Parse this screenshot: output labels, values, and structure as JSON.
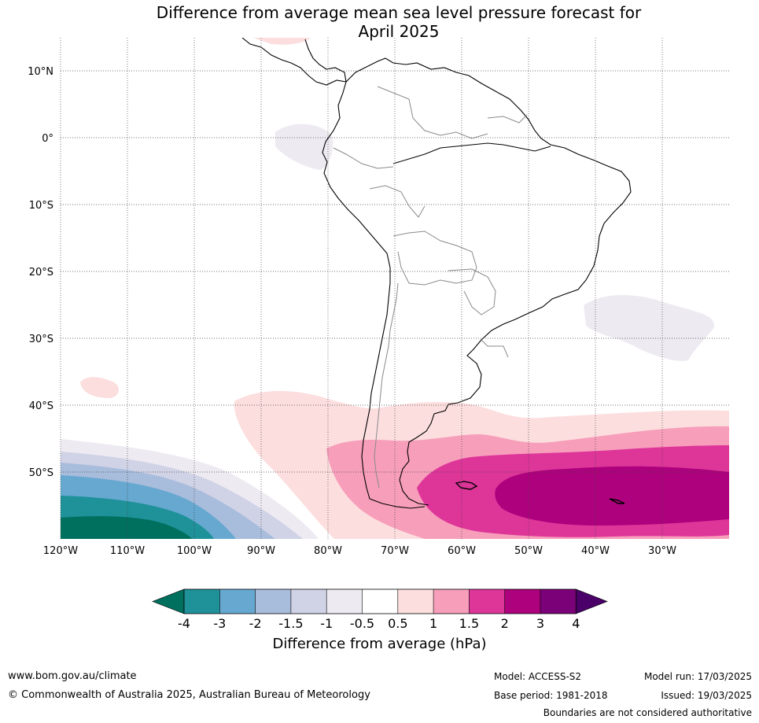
{
  "title_line1": "Difference from average mean sea level pressure forecast for",
  "title_line2": "April 2025",
  "lat_labels": [
    "10°N",
    "0°",
    "10°S",
    "20°S",
    "30°S",
    "40°S",
    "50°S"
  ],
  "lon_labels": [
    "120°W",
    "110°W",
    "100°W",
    "90°W",
    "80°W",
    "70°W",
    "60°W",
    "50°W",
    "40°W",
    "30°W"
  ],
  "colorbar": {
    "title": "Difference from average (hPa)",
    "tick_labels": [
      "-4",
      "-3",
      "-2",
      "-1.5",
      "-1",
      "-0.5",
      "0.5",
      "1",
      "1.5",
      "2",
      "3",
      "4"
    ],
    "colors": {
      "under": "#00705e",
      "bins": [
        "#1e9199",
        "#66a8d0",
        "#a8bcdc",
        "#d0d2e6",
        "#eeeaf2",
        "#ffffff",
        "#fcdede",
        "#f79eba",
        "#de3599",
        "#ad017d",
        "#7a0177"
      ],
      "over": "#4a0068"
    }
  },
  "footer": {
    "website": "www.bom.gov.au/climate",
    "copyright": "© Commonwealth of Australia 2025, Australian Bureau of Meteorology",
    "model": "Model: ACCESS-S2",
    "base_period": "Base period: 1981-2018",
    "model_run": "Model run: 17/03/2025",
    "issued": "Issued: 19/03/2025",
    "boundaries_note": "Boundaries are not considered authoritative"
  }
}
